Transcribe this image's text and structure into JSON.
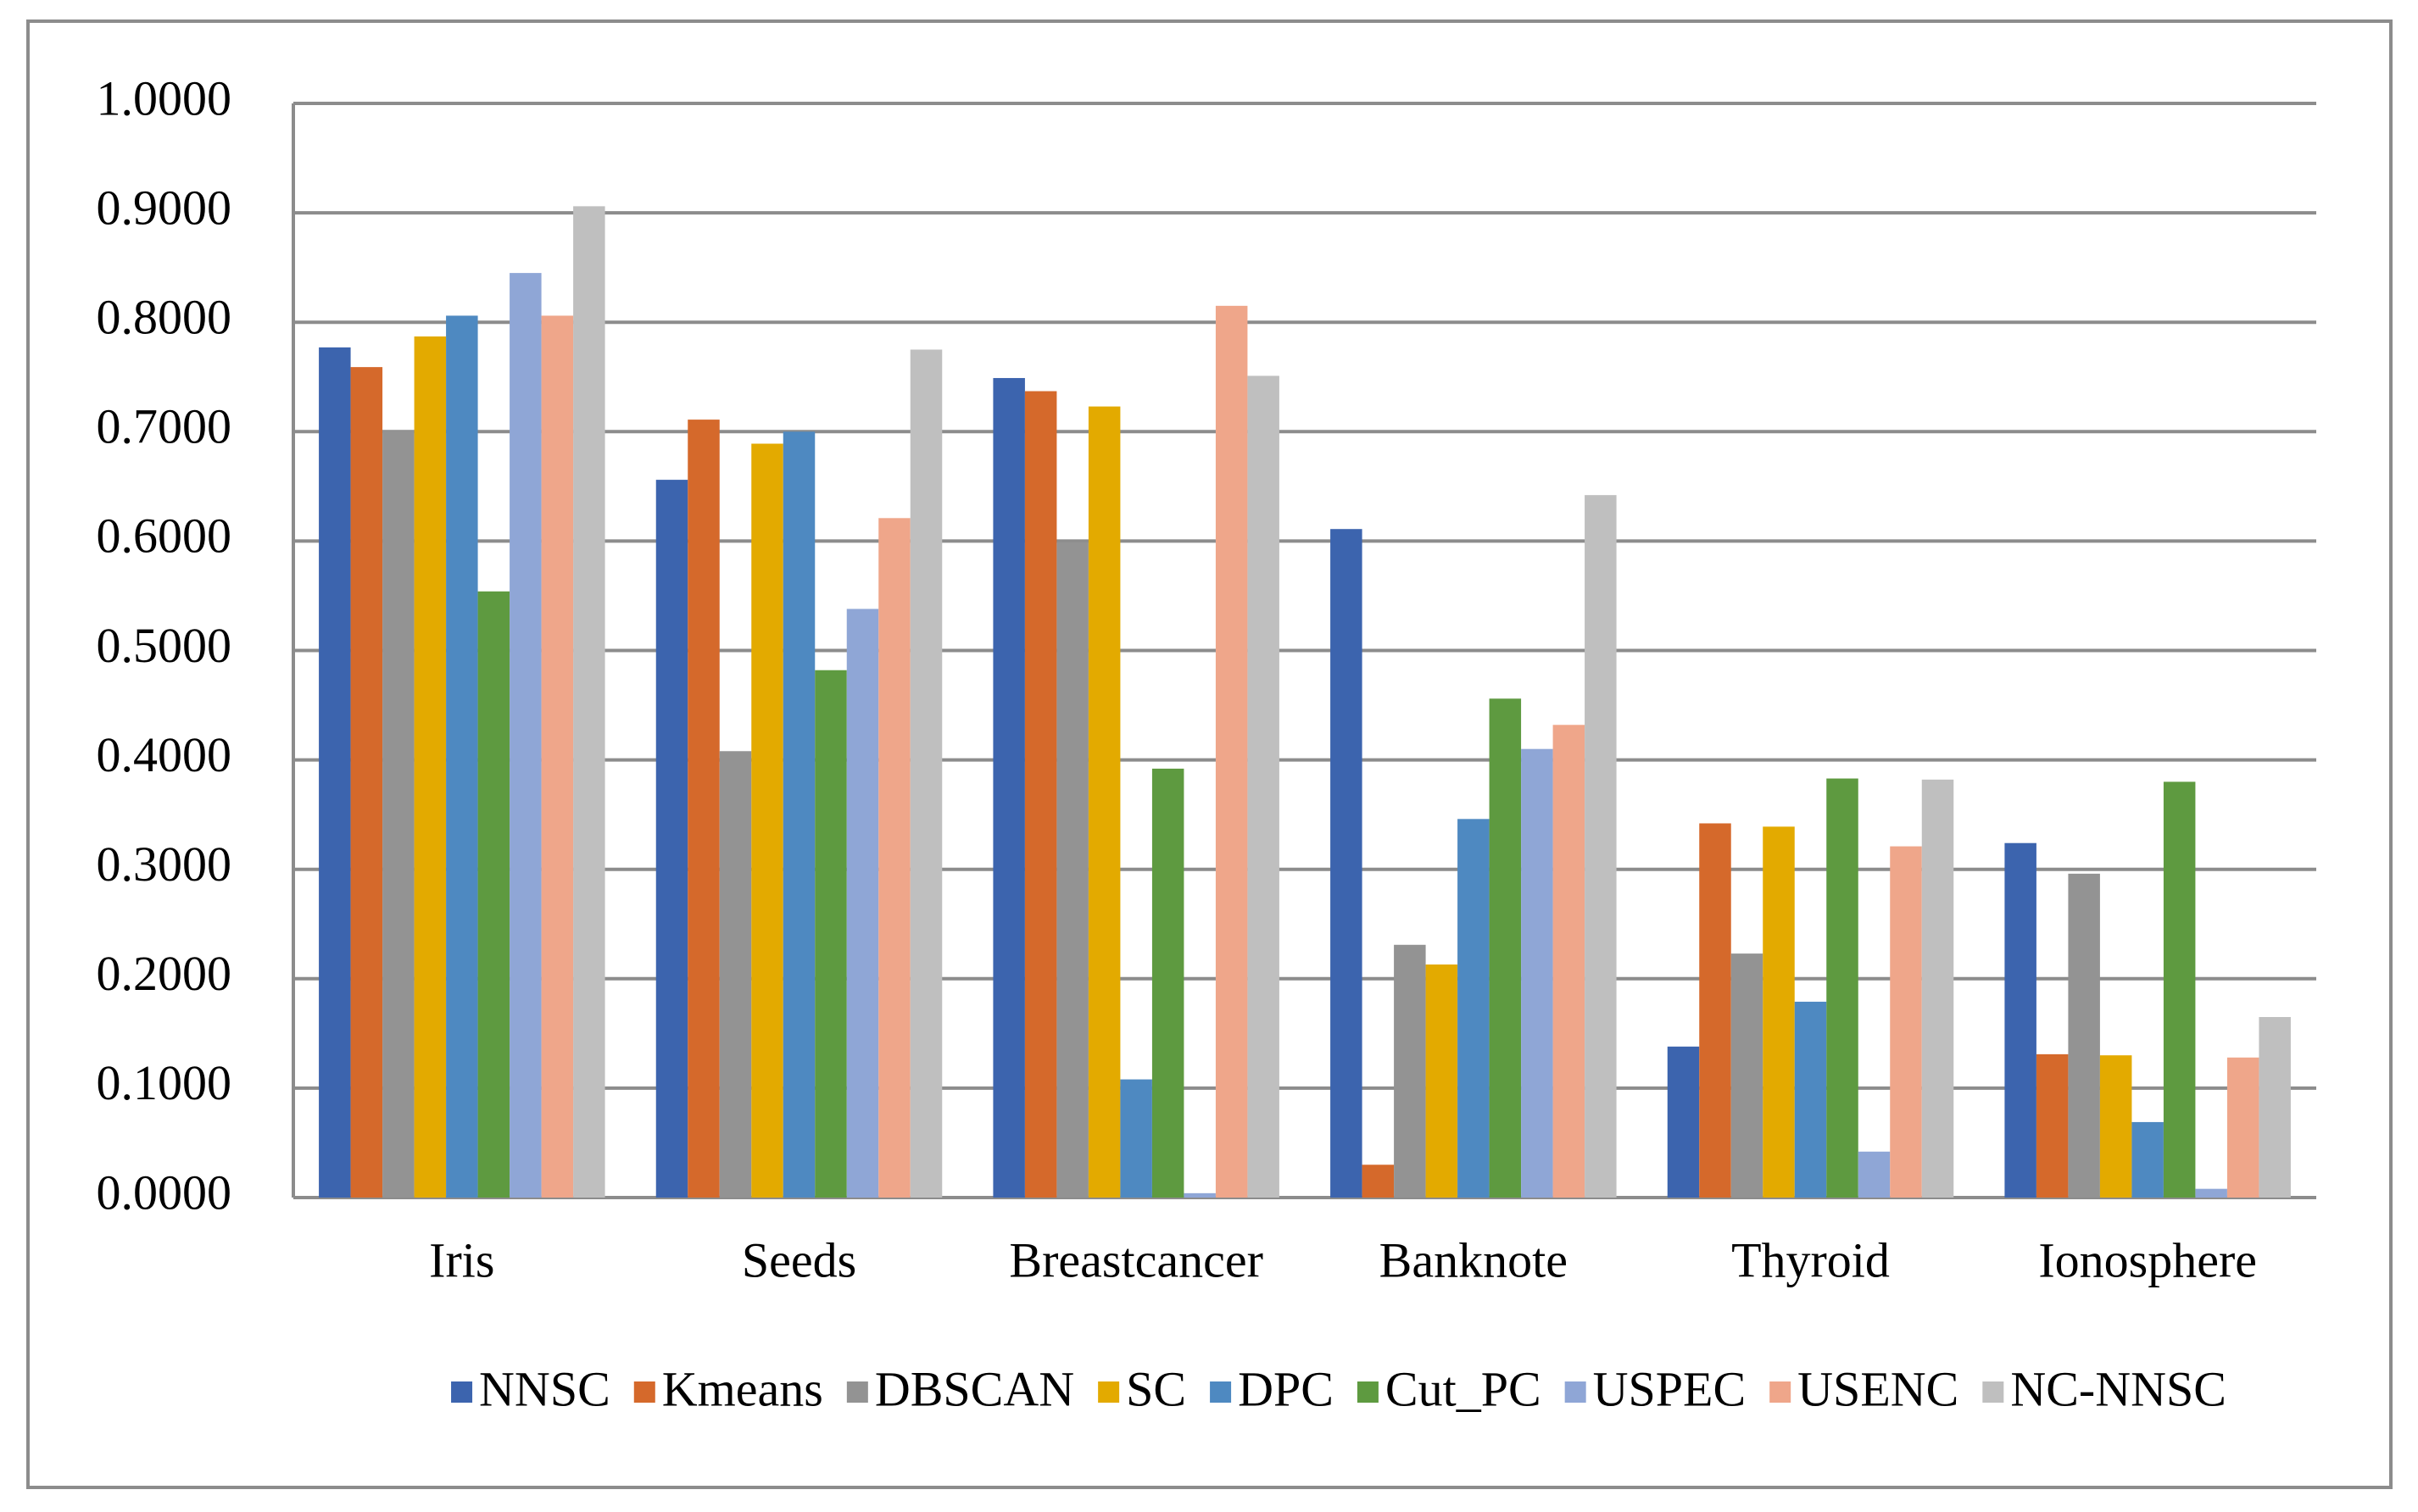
{
  "chart_data": {
    "type": "bar",
    "categories": [
      "Iris",
      "Seeds",
      "Breastcancer",
      "Banknote",
      "Thyroid",
      "Ionosphere"
    ],
    "series": [
      {
        "name": "NNSC",
        "color": "#3c64ae",
        "values": [
          0.777,
          0.656,
          0.749,
          0.611,
          0.138,
          0.324
        ]
      },
      {
        "name": "Kmeans",
        "color": "#d5692b",
        "values": [
          0.759,
          0.711,
          0.737,
          0.03,
          0.342,
          0.131
        ]
      },
      {
        "name": "DBSCAN",
        "color": "#939393",
        "values": [
          0.701,
          0.408,
          0.599,
          0.231,
          0.223,
          0.296
        ]
      },
      {
        "name": "SC",
        "color": "#e3aa00",
        "values": [
          0.787,
          0.689,
          0.723,
          0.213,
          0.339,
          0.13
        ]
      },
      {
        "name": "DPC",
        "color": "#4e89c1",
        "values": [
          0.806,
          0.7,
          0.108,
          0.346,
          0.179,
          0.069
        ]
      },
      {
        "name": "Cut_PC",
        "color": "#5e9a40",
        "values": [
          0.554,
          0.482,
          0.392,
          0.456,
          0.383,
          0.38
        ]
      },
      {
        "name": "USPEC",
        "color": "#8fa6d6",
        "values": [
          0.845,
          0.538,
          0.004,
          0.41,
          0.042,
          0.008
        ]
      },
      {
        "name": "USENC",
        "color": "#efa68a",
        "values": [
          0.806,
          0.621,
          0.815,
          0.432,
          0.321,
          0.128
        ]
      },
      {
        "name": "NC-NNSC",
        "color": "#bfbfbf",
        "values": [
          0.906,
          0.775,
          0.751,
          0.642,
          0.382,
          0.165
        ]
      }
    ],
    "ylim": [
      0,
      1
    ],
    "yticks": [
      {
        "value": 0,
        "label": "0.0000"
      },
      {
        "value": 0.1,
        "label": "0.1000"
      },
      {
        "value": 0.2,
        "label": "0.2000"
      },
      {
        "value": 0.3,
        "label": "0.3000"
      },
      {
        "value": 0.4,
        "label": "0.4000"
      },
      {
        "value": 0.5,
        "label": "0.5000"
      },
      {
        "value": 0.6,
        "label": "0.6000"
      },
      {
        "value": 0.7,
        "label": "0.7000"
      },
      {
        "value": 0.8,
        "label": "0.8000"
      },
      {
        "value": 0.9,
        "label": "0.9000"
      },
      {
        "value": 1,
        "label": "1.0000"
      }
    ],
    "grid": true,
    "legend": "bottom"
  }
}
